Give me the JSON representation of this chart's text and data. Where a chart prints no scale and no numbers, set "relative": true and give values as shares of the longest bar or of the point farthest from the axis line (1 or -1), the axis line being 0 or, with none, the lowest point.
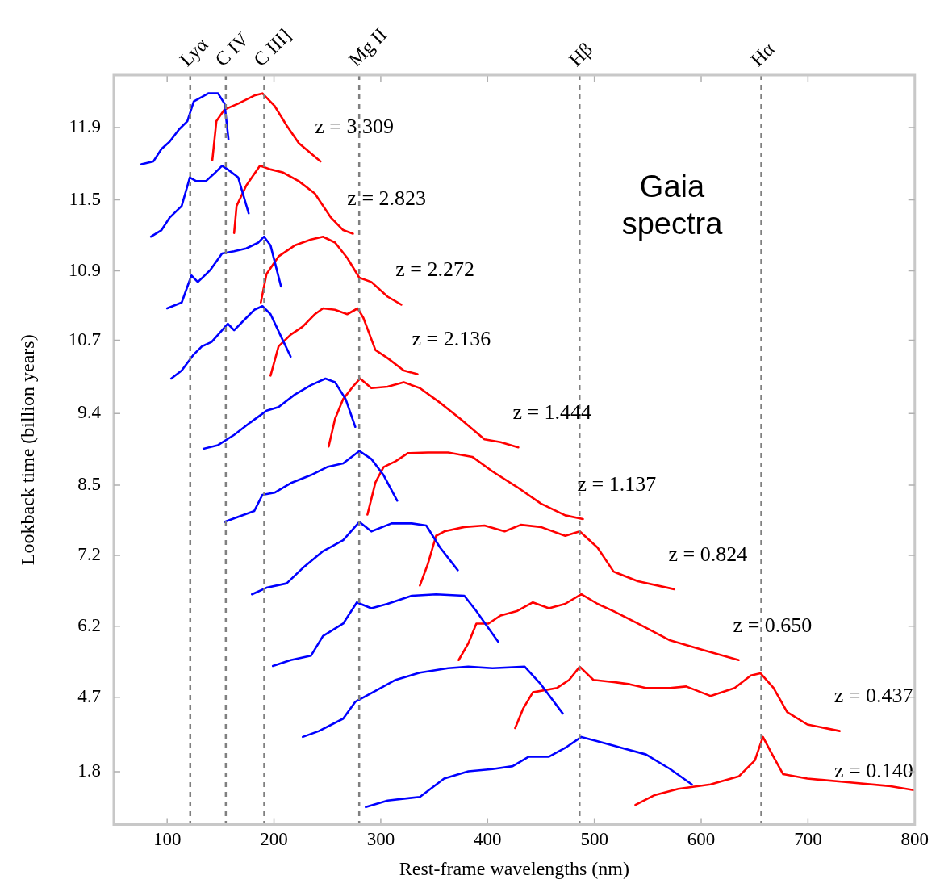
{
  "chart_data": {
    "type": "line",
    "xlabel": "Rest-frame wavelengths (nm)",
    "ylabel": "Lookback time (billion years)",
    "xlim": [
      50,
      800
    ],
    "xticks": [
      100,
      200,
      300,
      400,
      500,
      600,
      700,
      800
    ],
    "relative": true,
    "marker": "none",
    "series": [
      {
        "color": "#0000ff",
        "x": [
          75.8,
          87.1,
          94.7,
          102.3,
          111.3,
          118.9,
          124.9,
          132.5,
          138.5,
          147.6,
          153.7,
          157.4
        ],
        "values": [
          0.903,
          0.907,
          0.924,
          0.934,
          0.951,
          0.962,
          0.989,
          0.995,
          1,
          1,
          0.986,
          0.937
        ]
      },
      {
        "name": "z = 3.309",
        "color": "#ff0000",
        "x": [
          142.3,
          146.1,
          153.7,
          166.5,
          181.6,
          189.2,
          200.5,
          211.9,
          223.2,
          234.6,
          243.6
        ],
        "values": [
          0.909,
          0.962,
          0.978,
          0.986,
          0.997,
          1,
          0.983,
          0.956,
          0.932,
          0.918,
          0.907
        ]
      },
      {
        "color": "#0000ff",
        "x": [
          84.9,
          94.7,
          102.3,
          113.6,
          121.2,
          127.2,
          136.3,
          143.8,
          151.4,
          156.7,
          166.5,
          176.3
        ],
        "values": [
          0.804,
          0.813,
          0.83,
          0.846,
          0.885,
          0.88,
          0.88,
          0.89,
          0.901,
          0.896,
          0.885,
          0.836
        ]
      },
      {
        "name": "z = 2.823",
        "color": "#ff0000",
        "x": [
          162.7,
          165,
          174.1,
          186.9,
          196.8,
          208.1,
          223.2,
          238.3,
          253.4,
          264.8,
          273.9
        ],
        "values": [
          0.809,
          0.846,
          0.874,
          0.901,
          0.896,
          0.892,
          0.88,
          0.863,
          0.83,
          0.813,
          0.808
        ]
      },
      {
        "color": "#0000ff",
        "x": [
          100,
          113.6,
          122.7,
          128.7,
          140.1,
          151.4,
          162.7,
          174.1,
          185.4,
          190.7,
          196.8,
          206.6
        ],
        "values": [
          0.706,
          0.714,
          0.751,
          0.742,
          0.758,
          0.781,
          0.784,
          0.788,
          0.796,
          0.804,
          0.792,
          0.736
        ]
      },
      {
        "name": "z = 2.272",
        "color": "#ff0000",
        "x": [
          187.7,
          193,
          204.3,
          219.4,
          234.6,
          245.9,
          257.2,
          268.6,
          279.9,
          291.2,
          306.4,
          319.2
        ],
        "values": [
          0.714,
          0.753,
          0.777,
          0.792,
          0.8,
          0.804,
          0.796,
          0.775,
          0.748,
          0.742,
          0.722,
          0.711
        ]
      },
      {
        "color": "#0000ff",
        "x": [
          103.8,
          113.6,
          124.9,
          132.5,
          141.6,
          151.4,
          156.7,
          162.7,
          174.1,
          181.6,
          189.2,
          196.8,
          205.8,
          215.6
        ],
        "values": [
          0.61,
          0.621,
          0.643,
          0.654,
          0.66,
          0.676,
          0.685,
          0.676,
          0.693,
          0.704,
          0.709,
          0.698,
          0.67,
          0.64
        ]
      },
      {
        "name": "z = 2.136",
        "color": "#ff0000",
        "x": [
          196.8,
          204.3,
          215.6,
          226.9,
          238.3,
          245.9,
          257.2,
          268.6,
          278.4,
          283.7,
          295,
          306.4,
          321.5,
          334.4
        ],
        "values": [
          0.614,
          0.654,
          0.67,
          0.681,
          0.698,
          0.706,
          0.704,
          0.698,
          0.706,
          0.693,
          0.649,
          0.638,
          0.621,
          0.616
        ]
      },
      {
        "color": "#0000ff",
        "x": [
          134,
          147.6,
          162.7,
          177.9,
          193,
          204.3,
          219.4,
          234.6,
          248.2,
          257.2,
          267.1,
          276.1
        ],
        "values": [
          0.514,
          0.519,
          0.533,
          0.55,
          0.566,
          0.571,
          0.588,
          0.601,
          0.61,
          0.605,
          0.582,
          0.544
        ]
      },
      {
        "name": "z = 1.444",
        "color": "#ff0000",
        "x": [
          251.2,
          257.2,
          264.8,
          273.9,
          280.7,
          291.2,
          306.4,
          321.5,
          336.6,
          355.5,
          374.4,
          397.1,
          412.2,
          428.8
        ],
        "values": [
          0.517,
          0.555,
          0.582,
          0.599,
          0.61,
          0.597,
          0.599,
          0.605,
          0.597,
          0.577,
          0.555,
          0.527,
          0.523,
          0.516
        ]
      },
      {
        "color": "#0000ff",
        "x": [
          153.7,
          166.5,
          181.6,
          189.2,
          200.5,
          215.6,
          234.6,
          249.7,
          264.8,
          279.9,
          291.2,
          302.6,
          315.4
        ],
        "values": [
          0.414,
          0.421,
          0.429,
          0.451,
          0.454,
          0.467,
          0.478,
          0.489,
          0.494,
          0.511,
          0.5,
          0.478,
          0.443
        ]
      },
      {
        "name": "z = 1.137",
        "color": "#ff0000",
        "x": [
          287.5,
          295,
          302.6,
          313.9,
          325.3,
          344.2,
          363,
          385.7,
          404.6,
          427.3,
          450,
          472.7,
          489.3
        ],
        "values": [
          0.424,
          0.468,
          0.489,
          0.497,
          0.508,
          0.509,
          0.509,
          0.503,
          0.483,
          0.462,
          0.439,
          0.423,
          0.418
        ]
      },
      {
        "color": "#0000ff",
        "x": [
          179.4,
          193,
          211.9,
          227,
          245.9,
          264.8,
          279.9,
          291.2,
          310.1,
          329,
          342.6,
          355.5,
          372.1
        ],
        "values": [
          0.315,
          0.324,
          0.33,
          0.351,
          0.374,
          0.389,
          0.414,
          0.401,
          0.412,
          0.412,
          0.409,
          0.379,
          0.348
        ]
      },
      {
        "name": "z = 0.824",
        "color": "#ff0000",
        "x": [
          336.6,
          344.2,
          351.8,
          359.4,
          378.2,
          397.1,
          416,
          431.1,
          450,
          472.7,
          486.3,
          502.9,
          518,
          540.7,
          574.7
        ],
        "values": [
          0.327,
          0.357,
          0.395,
          0.401,
          0.407,
          0.409,
          0.401,
          0.41,
          0.407,
          0.395,
          0.401,
          0.379,
          0.346,
          0.333,
          0.322
        ]
      },
      {
        "color": "#0000ff",
        "x": [
          199,
          215.6,
          234.6,
          245.9,
          264.8,
          277.6,
          291.2,
          306.4,
          329,
          351.8,
          378.2,
          389.5,
          409.9
        ],
        "values": [
          0.217,
          0.225,
          0.231,
          0.258,
          0.275,
          0.304,
          0.296,
          0.302,
          0.313,
          0.315,
          0.313,
          0.292,
          0.25
        ]
      },
      {
        "name": "z = 0.650",
        "color": "#ff0000",
        "x": [
          372.9,
          382,
          389.5,
          400.8,
          412.2,
          427.3,
          442.4,
          457.5,
          472.7,
          487.8,
          502.9,
          518,
          540.7,
          570.9,
          601.2,
          635.2
        ],
        "values": [
          0.225,
          0.248,
          0.275,
          0.275,
          0.286,
          0.292,
          0.304,
          0.296,
          0.302,
          0.315,
          0.302,
          0.292,
          0.275,
          0.252,
          0.239,
          0.225
        ]
      },
      {
        "color": "#0000ff",
        "x": [
          227,
          242.1,
          264.8,
          276.1,
          295,
          313.9,
          336.6,
          363,
          381.9,
          404.6,
          434.8,
          449.9,
          470.4
        ],
        "values": [
          0.12,
          0.128,
          0.145,
          0.168,
          0.183,
          0.198,
          0.208,
          0.214,
          0.216,
          0.214,
          0.216,
          0.192,
          0.152
        ]
      },
      {
        "name": "z = 0.437",
        "color": "#ff0000",
        "x": [
          425.8,
          433.4,
          442.4,
          465.1,
          476.4,
          486.3,
          499.1,
          518,
          533.1,
          548.2,
          570.9,
          586,
          608.7,
          631.4,
          646.5,
          655.6,
          667.7,
          680.5,
          699.4,
          729.7
        ],
        "values": [
          0.132,
          0.159,
          0.181,
          0.187,
          0.198,
          0.216,
          0.198,
          0.195,
          0.192,
          0.187,
          0.187,
          0.189,
          0.176,
          0.187,
          0.204,
          0.207,
          0.187,
          0.154,
          0.137,
          0.128
        ]
      },
      {
        "color": "#0000ff",
        "x": [
          286,
          306.4,
          336.6,
          359.3,
          382,
          404.6,
          423.5,
          438.6,
          457.5,
          472.7,
          487.8,
          502.9,
          525.6,
          548.3,
          571,
          591.3
        ],
        "values": [
          0.024,
          0.033,
          0.038,
          0.063,
          0.073,
          0.076,
          0.08,
          0.093,
          0.093,
          0.105,
          0.12,
          0.114,
          0.105,
          0.096,
          0.076,
          0.055
        ]
      },
      {
        "name": "z = 0.140",
        "color": "#ff0000",
        "x": [
          538.4,
          555.8,
          578.5,
          608.7,
          635.2,
          650.3,
          657.8,
          665.4,
          676.7,
          699.4,
          737.2,
          775,
          800
        ],
        "values": [
          0.027,
          0.04,
          0.049,
          0.055,
          0.066,
          0.088,
          0.12,
          0.099,
          0.069,
          0.063,
          0.058,
          0.053,
          0.047
        ]
      }
    ],
    "ref_lines": [
      {
        "axis": "x",
        "value": 121.6,
        "label": "Lyα",
        "color": "#808080",
        "line_style": "dashed"
      },
      {
        "axis": "x",
        "value": 154.9,
        "label": "C IV",
        "color": "#808080",
        "line_style": "dashed"
      },
      {
        "axis": "x",
        "value": 190.9,
        "label": "C III]",
        "color": "#808080",
        "line_style": "dashed"
      },
      {
        "axis": "x",
        "value": 279.8,
        "label": "Mg II",
        "color": "#808080",
        "line_style": "dashed"
      },
      {
        "axis": "x",
        "value": 486.1,
        "label": "Hβ",
        "color": "#808080",
        "line_style": "dashed"
      },
      {
        "axis": "x",
        "value": 656.3,
        "label": "Hα",
        "color": "#808080",
        "line_style": "dashed"
      }
    ],
    "annotations": [
      "11.9",
      "11.5",
      "10.9",
      "10.7",
      "9.4",
      "8.5",
      "7.2",
      "6.2",
      "4.7",
      "1.8",
      "Gaia spectra"
    ]
  }
}
